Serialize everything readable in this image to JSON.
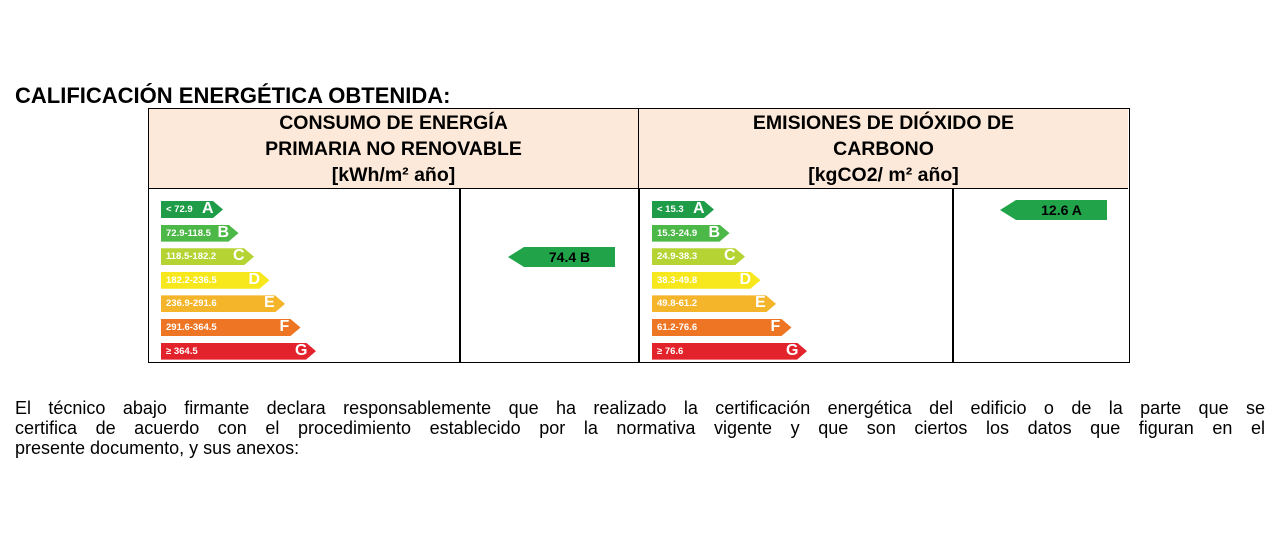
{
  "title": "CALIFICACIÓN ENERGÉTICA OBTENIDA:",
  "left": {
    "header_lines": [
      "CONSUMO DE ENERGÍA",
      "PRIMARIA NO RENOVABLE",
      "[kWh/m² año]"
    ],
    "scale": [
      {
        "range": "< 72.9",
        "letter": "A",
        "color": "#1e9c47"
      },
      {
        "range": "72.9-118.5",
        "letter": "B",
        "color": "#4cb848"
      },
      {
        "range": "118.5-182.2",
        "letter": "C",
        "color": "#b6d334"
      },
      {
        "range": "182.2-236.5",
        "letter": "D",
        "color": "#f6e81c"
      },
      {
        "range": "236.9-291.6",
        "letter": "E",
        "color": "#f4b52a"
      },
      {
        "range": "291.6-364.5",
        "letter": "F",
        "color": "#ee7524"
      },
      {
        "range": "≥ 364.5",
        "letter": "G",
        "color": "#e3232c"
      }
    ],
    "rating": {
      "value": "74.4 B",
      "level_index": 1
    }
  },
  "right": {
    "header_lines": [
      "EMISIONES DE DIÓXIDO DE",
      "CARBONO",
      "[kgCO2/ m² año]"
    ],
    "scale": [
      {
        "range": "< 15.3",
        "letter": "A",
        "color": "#1e9c47"
      },
      {
        "range": "15.3-24.9",
        "letter": "B",
        "color": "#4cb848"
      },
      {
        "range": "24.9-38.3",
        "letter": "C",
        "color": "#b6d334"
      },
      {
        "range": "38.3-49.8",
        "letter": "D",
        "color": "#f6e81c"
      },
      {
        "range": "49.8-61.2",
        "letter": "E",
        "color": "#f4b52a"
      },
      {
        "range": "61.2-76.6",
        "letter": "F",
        "color": "#ee7524"
      },
      {
        "range": "≥ 76.6",
        "letter": "G",
        "color": "#e3232c"
      }
    ],
    "rating": {
      "value": "12.6 A",
      "level_index": 0
    }
  },
  "paragraph": [
    "El técnico abajo firmante declara responsablemente que ha realizado la certificación energética del edificio o de la parte que se",
    "certifica de acuerdo con el procedimiento establecido por la normativa vigente y que son ciertos los datos que figuran en el",
    "presente documento, y sus anexos:"
  ]
}
